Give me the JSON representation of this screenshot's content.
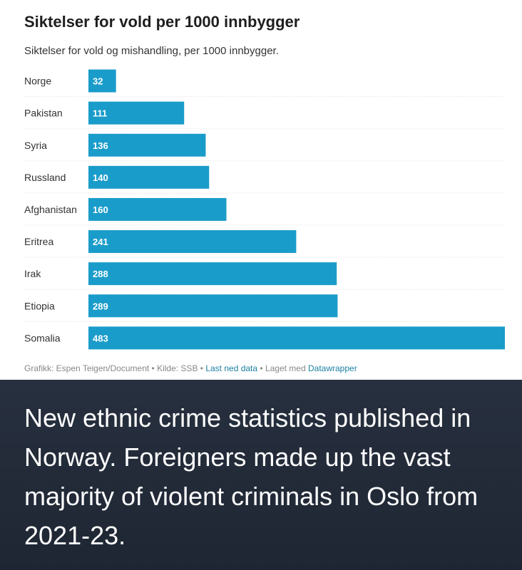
{
  "chart_data": {
    "type": "bar",
    "orientation": "horizontal",
    "title": "Siktelser for vold per 1000 innbygger",
    "subtitle": "Siktelser for vold og mishandling, per 1000 innbygger.",
    "categories": [
      "Norge",
      "Pakistan",
      "Syria",
      "Russland",
      "Afghanistan",
      "Eritrea",
      "Irak",
      "Etiopia",
      "Somalia"
    ],
    "values": [
      32,
      111,
      136,
      140,
      160,
      241,
      288,
      289,
      483
    ],
    "xlim": [
      0,
      483
    ],
    "grid": false,
    "bar_color": "#1a9cca",
    "label_color": "#ffffff"
  },
  "footer": {
    "credit": "Grafikk: Espen Teigen/Document",
    "sep1": " • ",
    "source": "Kilde: SSB",
    "sep2": " • ",
    "download_link": "Last ned data",
    "sep3": " • ",
    "made_with": "Laget med ",
    "tool_link": "Datawrapper"
  },
  "caption": {
    "text": "New ethnic crime statistics published in Norway. Foreigners made up the vast majority of violent criminals in Oslo from 2021-23."
  }
}
